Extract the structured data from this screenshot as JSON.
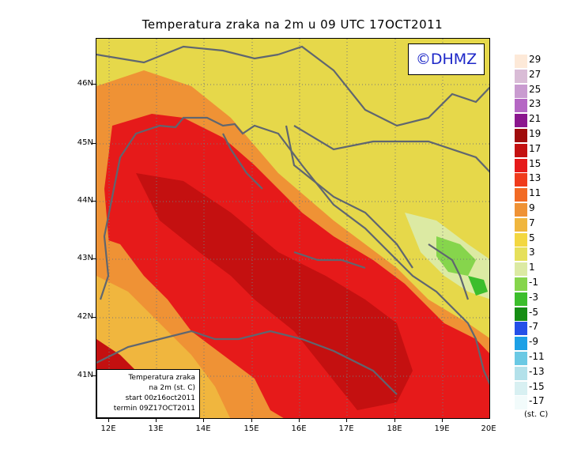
{
  "title": "Temperatura zraka na 2m u 09 UTC 17OCT2011",
  "logo": "©DHMZ",
  "infobox": {
    "line1": "Temperatura zraka",
    "line2": "na 2m (st. C)",
    "line3": "start 00z16oct2011",
    "line4": "termin 09Z17OCT2011"
  },
  "lat_labels": [
    "46N",
    "45N",
    "44N",
    "43N",
    "42N",
    "41N"
  ],
  "lon_labels": [
    "12E",
    "13E",
    "14E",
    "15E",
    "16E",
    "17E",
    "18E",
    "19E",
    "20E"
  ],
  "legend": {
    "labels": [
      "29",
      "27",
      "25",
      "23",
      "21",
      "19",
      "17",
      "15",
      "13",
      "11",
      "9",
      "7",
      "5",
      "3",
      "1",
      "-1",
      "-3",
      "-5",
      "-7",
      "-9",
      "-11",
      "-13",
      "-15",
      "-17"
    ],
    "colors": [
      "#fde9d8",
      "#d9bcd6",
      "#c99bd0",
      "#b567c4",
      "#8b168e",
      "#a00c0c",
      "#c41010",
      "#e61a1a",
      "#f03b1c",
      "#f26a24",
      "#ef9235",
      "#f0b63e",
      "#f3d741",
      "#e6e05a",
      "#dceaa3",
      "#86d54c",
      "#3cbe2c",
      "#168d14",
      "#2450e8",
      "#1ca0e6",
      "#6ac9e4",
      "#b3e1ea",
      "#d8f0f2",
      "#f2fbfb"
    ],
    "unit": "(st. C)"
  }
}
